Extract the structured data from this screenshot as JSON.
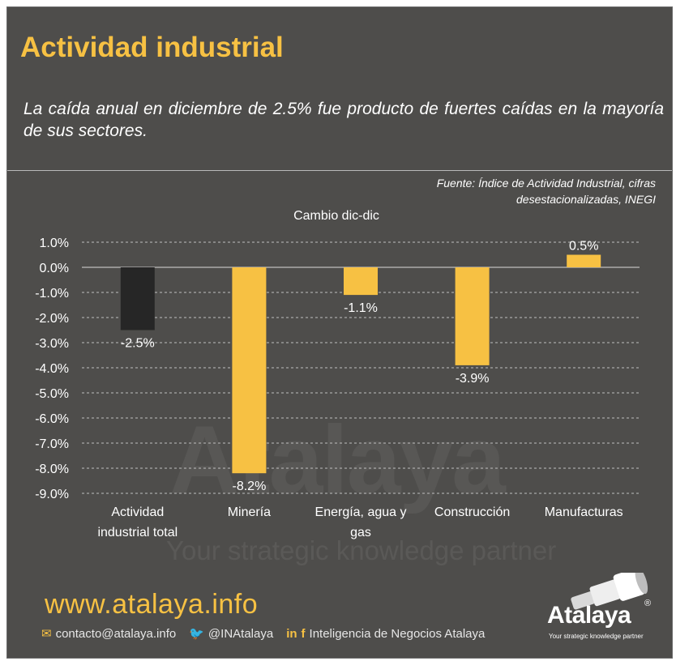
{
  "header": {
    "title": "Actividad industrial",
    "subtitle": "La caída anual en diciembre de 2.5% fue producto de fuertes caídas en la mayoría de sus sectores.",
    "source_line1": "Fuente: Índice de Actividad Industrial, cifras",
    "source_line2": "desestacionalizadas, INEGI"
  },
  "chart_data": {
    "type": "bar",
    "title": "Cambio dic-dic",
    "categories": [
      [
        "Actividad",
        "industrial total"
      ],
      [
        "Minería"
      ],
      [
        "Energía, agua y",
        "gas"
      ],
      [
        "Construcción"
      ],
      [
        "Manufacturas"
      ]
    ],
    "values": [
      -2.5,
      -8.2,
      -1.1,
      -3.9,
      0.5
    ],
    "value_labels": [
      "-2.5%",
      "-8.2%",
      "-1.1%",
      "-3.9%",
      "0.5%"
    ],
    "bar_colors": [
      "#262626",
      "#f7c143",
      "#f7c143",
      "#f7c143",
      "#f7c143"
    ],
    "ylim": [
      -9.0,
      1.0
    ],
    "yticks": [
      "1.0%",
      "0.0%",
      "-1.0%",
      "-2.0%",
      "-3.0%",
      "-4.0%",
      "-5.0%",
      "-6.0%",
      "-7.0%",
      "-8.0%",
      "-9.0%"
    ],
    "grid": true
  },
  "footer": {
    "url": "www.atalaya.info",
    "email": "contacto@atalaya.info",
    "twitter": "@INAtalaya",
    "company": "Inteligencia de Negocios Atalaya"
  },
  "logo": {
    "name": "Atalaya",
    "registered": "®",
    "tagline": "Your strategic knowledge partner"
  },
  "colors": {
    "background": "#4e4d4b",
    "accent": "#f7c143",
    "total_bar": "#262626"
  }
}
